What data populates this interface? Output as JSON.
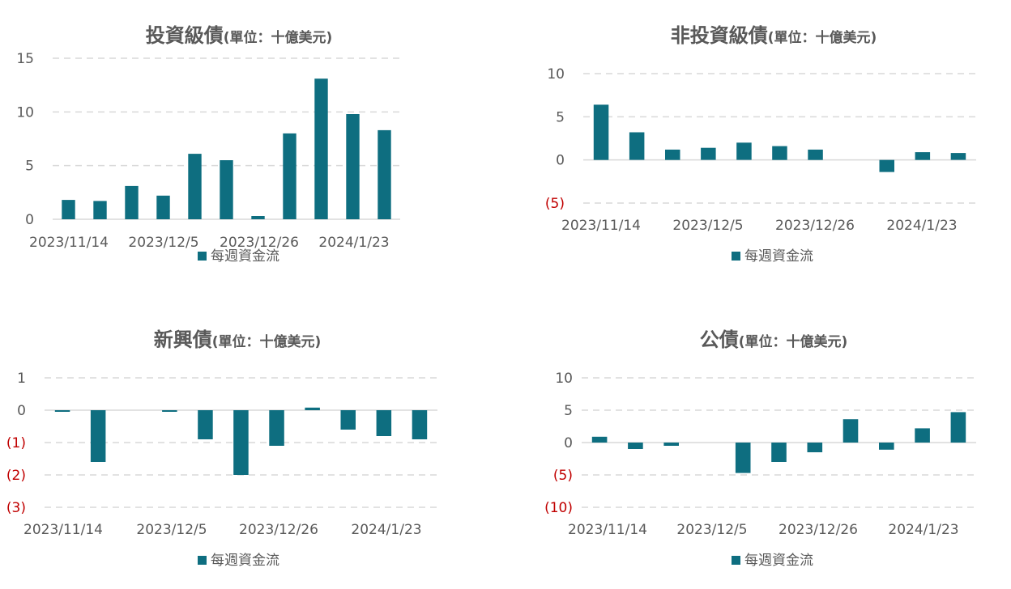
{
  "colors": {
    "bar": "#0e6e80",
    "text": "#595959",
    "negative": "#c00000",
    "grid": "#d9d9d9"
  },
  "chart_data": [
    {
      "type": "bar",
      "title": "投資級債",
      "subtitle": "(單位：十億美元)",
      "x_tick_labels": [
        "2023/11/14",
        "2023/12/5",
        "2023/12/26",
        "2024/1/23"
      ],
      "y_ticks": [
        "0",
        "5",
        "10",
        "15"
      ],
      "ylim": [
        0,
        15
      ],
      "grid": true,
      "legend": "bottom",
      "series": [
        {
          "name": "每週資金流",
          "values": [
            1.8,
            1.7,
            3.1,
            2.2,
            6.1,
            5.5,
            0.3,
            8.0,
            13.1,
            9.8,
            8.3
          ]
        }
      ]
    },
    {
      "type": "bar",
      "title": "非投資級債",
      "subtitle": "(單位：十億美元)",
      "x_tick_labels": [
        "2023/11/14",
        "2023/12/5",
        "2023/12/26",
        "2024/1/23"
      ],
      "y_ticks": [
        "(5)",
        "0",
        "5",
        "10"
      ],
      "ylim": [
        -5,
        10
      ],
      "grid": true,
      "legend": "bottom",
      "series": [
        {
          "name": "每週資金流",
          "values": [
            6.4,
            3.2,
            1.2,
            1.4,
            2.0,
            1.6,
            1.2,
            0,
            -1.4,
            0.9,
            0.8
          ]
        }
      ]
    },
    {
      "type": "bar",
      "title": "新興債",
      "subtitle": "(單位：十億美元)",
      "x_tick_labels": [
        "2023/11/14",
        "2023/12/5",
        "2023/12/26",
        "2024/1/23"
      ],
      "y_ticks": [
        "(3)",
        "(2)",
        "(1)",
        "0",
        "1"
      ],
      "ylim": [
        -3,
        1
      ],
      "grid": true,
      "legend": "bottom",
      "series": [
        {
          "name": "每週資金流",
          "values": [
            -0.05,
            -1.6,
            0,
            -0.05,
            -0.9,
            -2.0,
            -1.1,
            0.08,
            -0.6,
            -0.8,
            -0.9
          ]
        }
      ]
    },
    {
      "type": "bar",
      "title": "公債",
      "subtitle": "(單位：十億美元)",
      "x_tick_labels": [
        "2023/11/14",
        "2023/12/5",
        "2023/12/26",
        "2024/1/23"
      ],
      "y_ticks": [
        "(10)",
        "(5)",
        "0",
        "5",
        "10"
      ],
      "ylim": [
        -10,
        10
      ],
      "grid": true,
      "legend": "bottom",
      "series": [
        {
          "name": "每週資金流",
          "values": [
            0.9,
            -1.0,
            -0.5,
            0,
            -4.7,
            -3.0,
            -1.5,
            3.6,
            -1.1,
            2.2,
            4.7
          ]
        }
      ]
    }
  ]
}
